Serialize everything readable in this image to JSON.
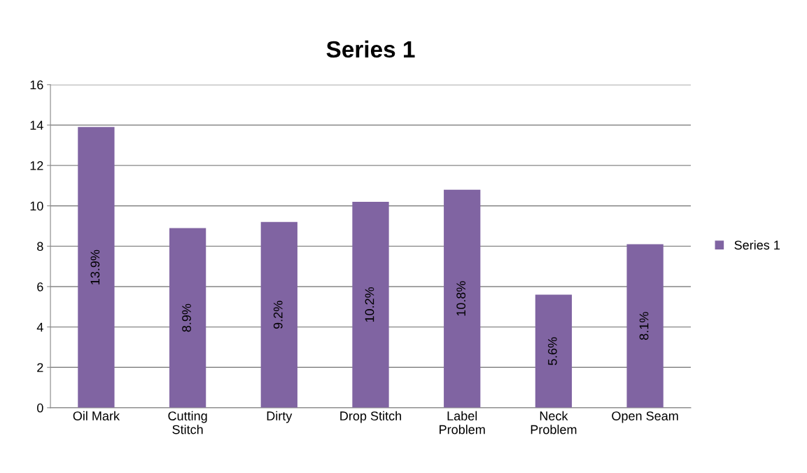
{
  "chart_data": {
    "type": "bar",
    "title": "Series 1",
    "categories": [
      "Oil Mark",
      "Cutting\nStitch",
      "Dirty",
      "Drop Stitch",
      "Label\nProblem",
      "Neck\nProblem",
      "Open Seam"
    ],
    "series": [
      {
        "name": "Series 1",
        "color": "#8064a2",
        "values": [
          13.9,
          8.9,
          9.2,
          10.2,
          10.8,
          5.6,
          8.1
        ],
        "value_labels": [
          "13.9%",
          "8.9%",
          "9.2%",
          "10.2%",
          "10.8%",
          "5.6%",
          "8.1%"
        ]
      }
    ],
    "ylim": [
      0,
      16
    ],
    "yticks": [
      0,
      2,
      4,
      6,
      8,
      10,
      12,
      14,
      16
    ],
    "grid": "y",
    "legend": "right"
  }
}
